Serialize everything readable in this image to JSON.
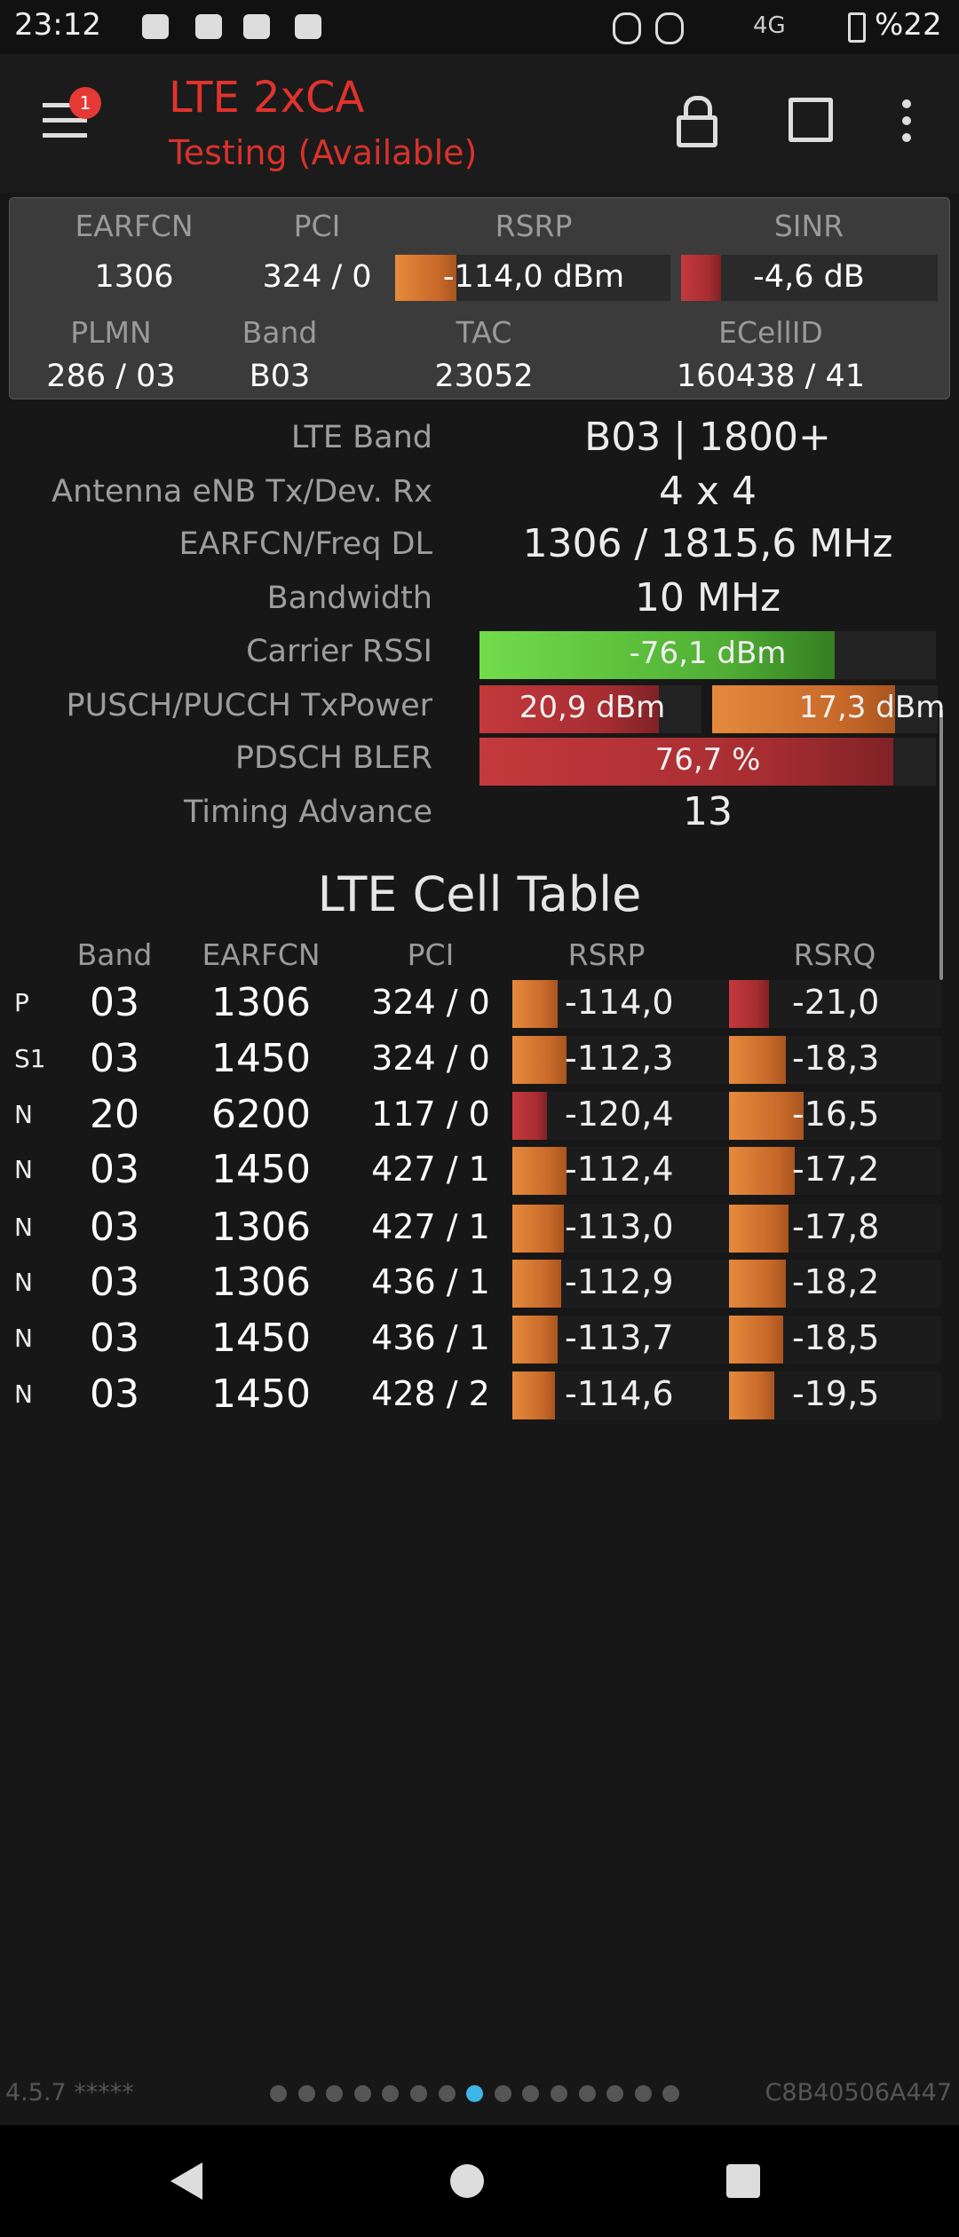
{
  "status_bar": {
    "time": "23:12",
    "network": "4G",
    "battery": "%22"
  },
  "app_bar": {
    "badge": "1",
    "title": "LTE 2xCA",
    "subtitle": "Testing (Available)"
  },
  "summary": {
    "headers": [
      "EARFCN",
      "PCI",
      "RSRP",
      "SINR"
    ],
    "values": [
      "1306",
      "324 / 0",
      "-114,0 dBm",
      "-4,6 dB"
    ],
    "headers2": [
      "PLMN",
      "Band",
      "TAC",
      "ECellID"
    ],
    "values2": [
      "286 / 03",
      "B03",
      "23052",
      "160438 / 41"
    ]
  },
  "details": {
    "rows": [
      {
        "label": "LTE Band",
        "values": [
          "B03 | 1800+"
        ]
      },
      {
        "label": "Antenna eNB Tx/Dev. Rx",
        "values": [
          "4 x 4"
        ]
      },
      {
        "label": "EARFCN/Freq DL",
        "values": [
          "1306 / 1815,6 MHz"
        ]
      },
      {
        "label": "Bandwidth",
        "values": [
          "10 MHz"
        ]
      },
      {
        "label": "Carrier RSSI",
        "values": [
          "-76,1 dBm"
        ]
      },
      {
        "label": "PUSCH/PUCCH TxPower",
        "values": [
          "20,9 dBm",
          "17,3 dBm"
        ]
      },
      {
        "label": "PDSCH BLER",
        "values": [
          "76,7 %"
        ]
      },
      {
        "label": "Timing Advance",
        "values": [
          "13"
        ]
      }
    ]
  },
  "cell_table": {
    "title": "LTE Cell Table",
    "headers": [
      "Band",
      "EARFCN",
      "PCI",
      "RSRP",
      "RSRQ"
    ],
    "rows": [
      [
        "P",
        "03",
        "1306",
        "324 / 0",
        "-114,0",
        "-21,0"
      ],
      [
        "S1",
        "03",
        "1450",
        "324 / 0",
        "-112,3",
        "-18,3"
      ],
      [
        "N",
        "20",
        "6200",
        "117 / 0",
        "-120,4",
        "-16,5"
      ],
      [
        "N",
        "03",
        "1450",
        "427 / 1",
        "-112,4",
        "-17,2"
      ],
      [
        "N",
        "03",
        "1306",
        "427 / 1",
        "-113,0",
        "-17,8"
      ],
      [
        "N",
        "03",
        "1306",
        "436 / 1",
        "-112,9",
        "-18,2"
      ],
      [
        "N",
        "03",
        "1450",
        "436 / 1",
        "-113,7",
        "-18,5"
      ],
      [
        "N",
        "03",
        "1450",
        "428 / 2",
        "-114,6",
        "-19,5"
      ]
    ]
  },
  "footer": {
    "version": "4.5.7 *****",
    "device_id": "C8B40506A447"
  }
}
